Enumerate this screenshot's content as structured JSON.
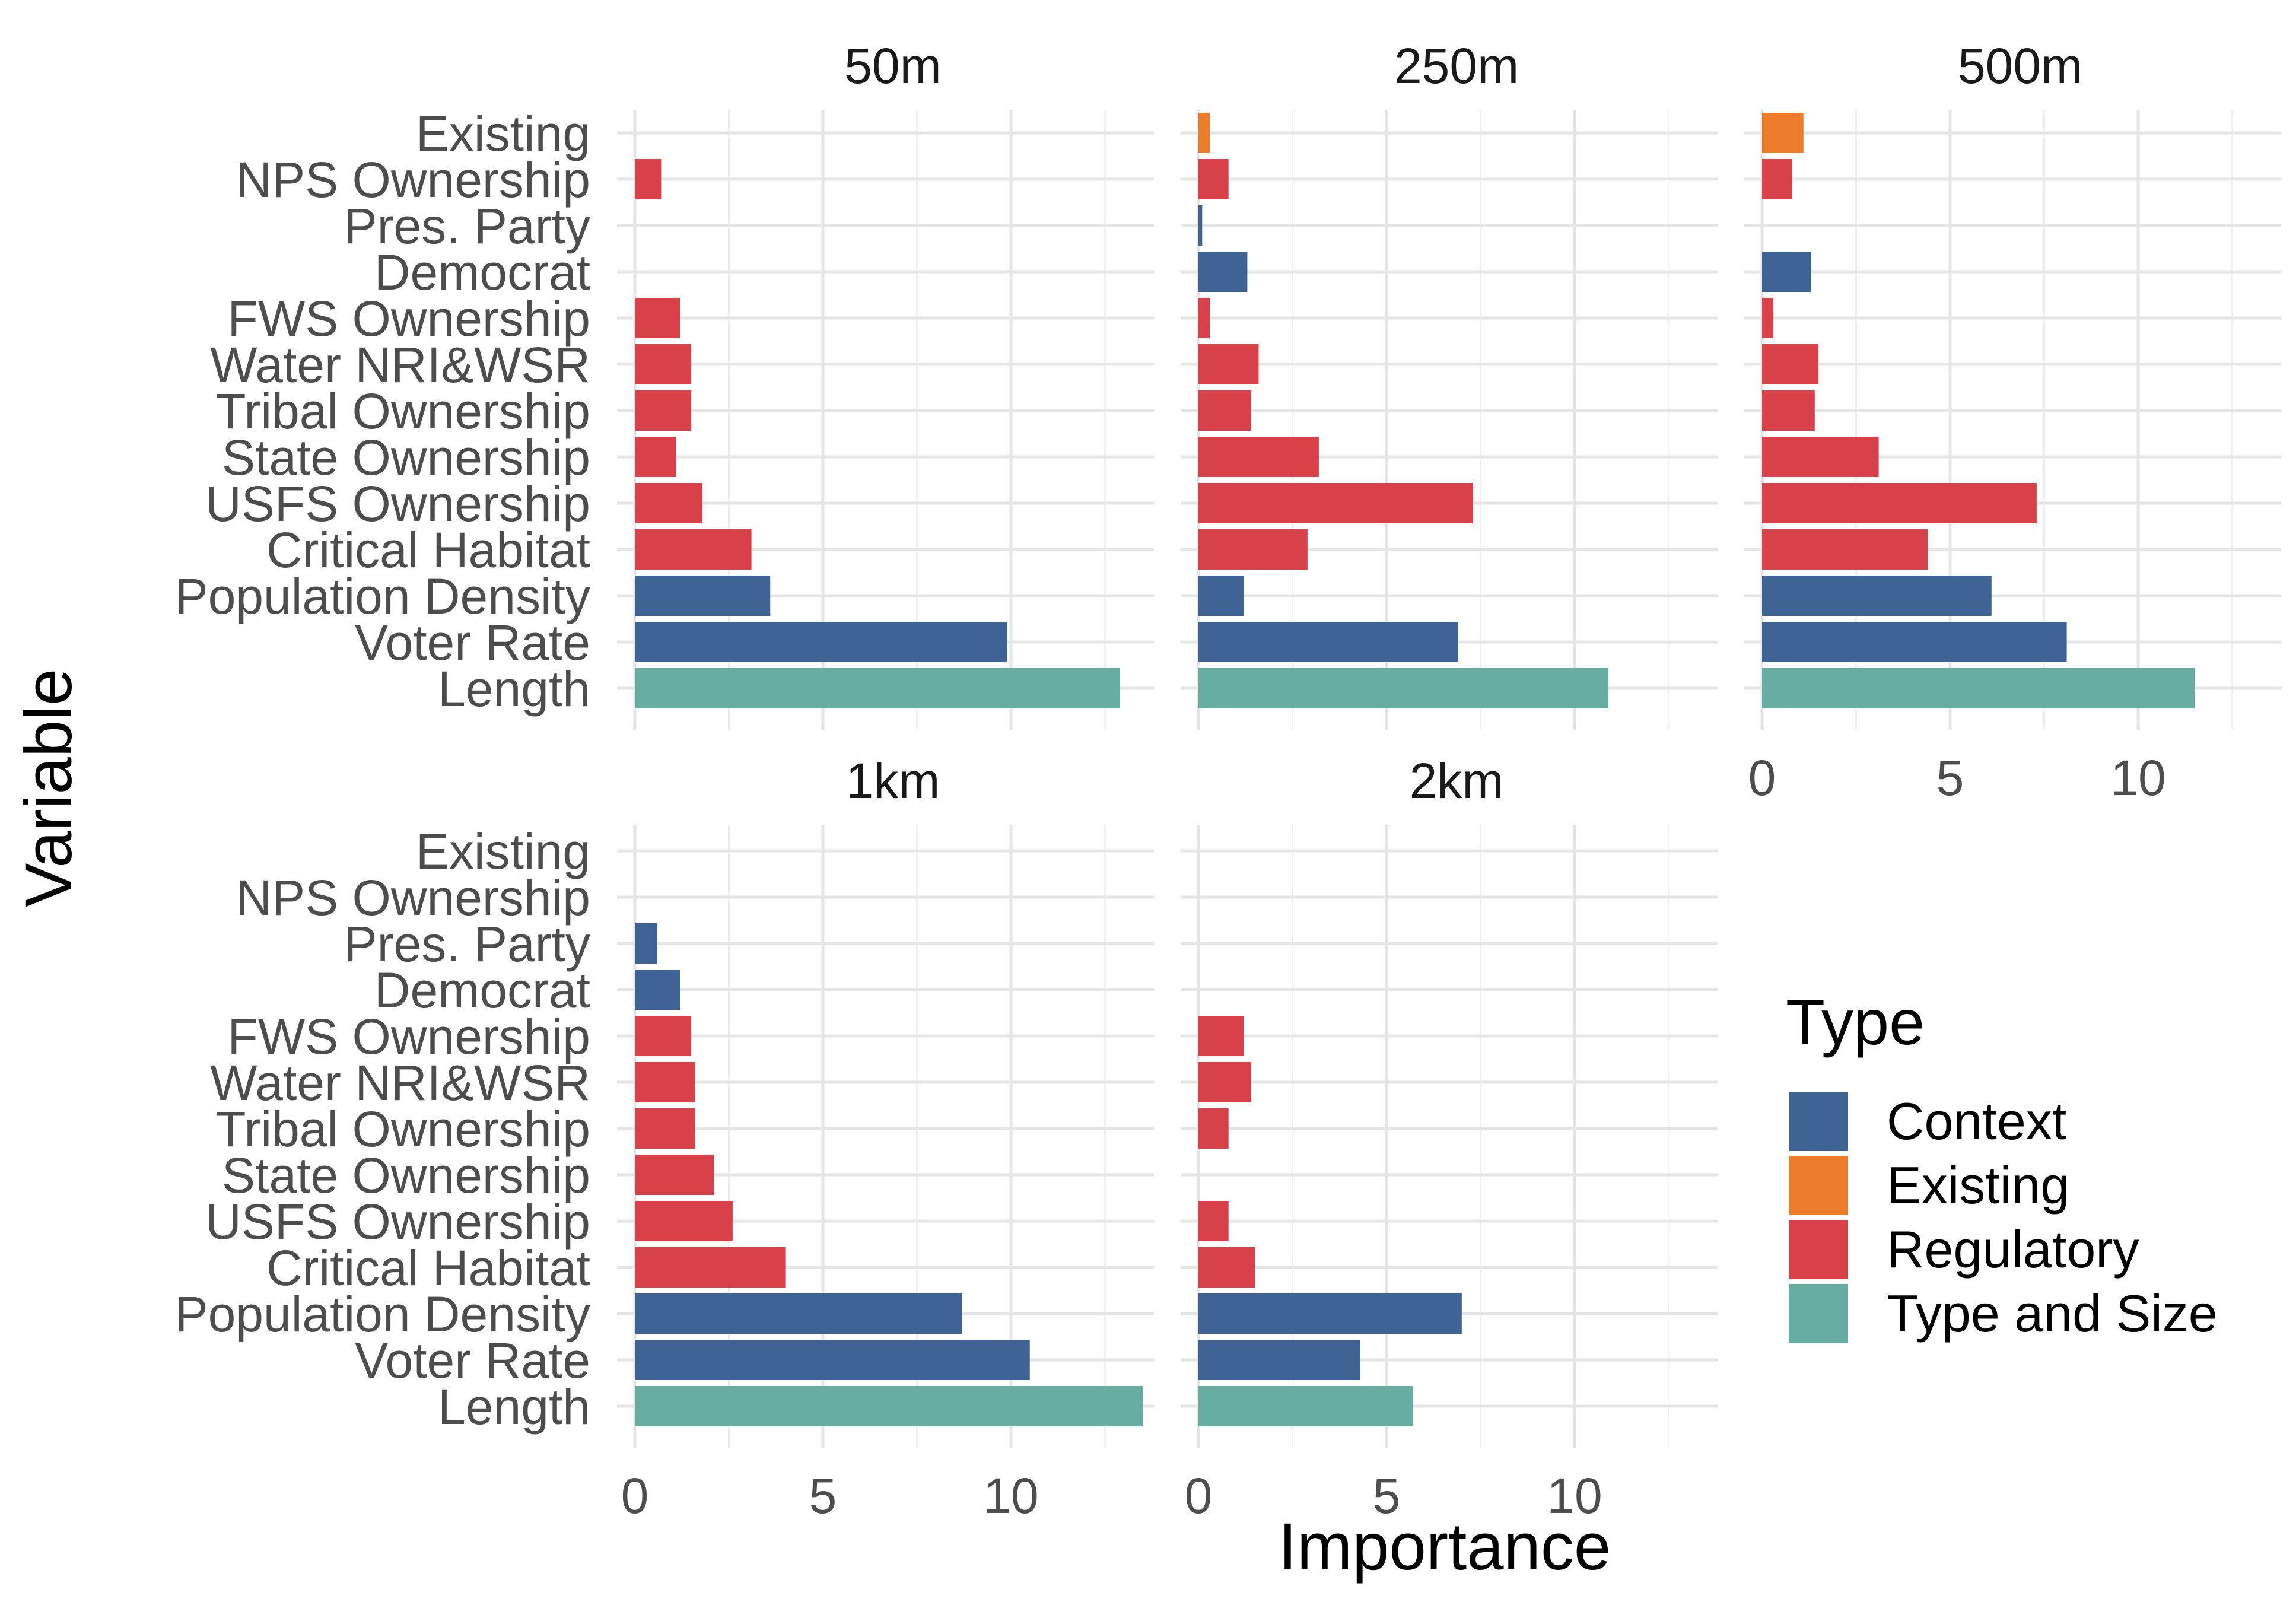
{
  "chart_data": {
    "type": "bar",
    "orientation": "horizontal",
    "xlabel": "Importance",
    "ylabel": "Variable",
    "xlim": [
      0,
      13.8
    ],
    "xticks": [
      "0",
      "5",
      "10"
    ],
    "grid": true,
    "categories": [
      "Existing",
      "NPS Ownership",
      "Pres. Party",
      "Democrat",
      "FWS Ownership",
      "Water NRI&WSR",
      "Tribal Ownership",
      "State Ownership",
      "USFS Ownership",
      "Critical Habitat",
      "Population Density",
      "Voter Rate",
      "Length"
    ],
    "category_types": [
      "Existing",
      "Regulatory",
      "Context",
      "Context",
      "Regulatory",
      "Regulatory",
      "Regulatory",
      "Regulatory",
      "Regulatory",
      "Regulatory",
      "Context",
      "Context",
      "Type and Size"
    ],
    "legend": {
      "title": "Type",
      "position": "right",
      "items": [
        {
          "name": "Context",
          "color": "#3f6394"
        },
        {
          "name": "Existing",
          "color": "#ec7d2c"
        },
        {
          "name": "Regulatory",
          "color": "#d9414a"
        },
        {
          "name": "Type and Size",
          "color": "#67ada2"
        }
      ]
    },
    "panels": [
      {
        "title": "50m",
        "values": [
          null,
          0.7,
          null,
          null,
          1.2,
          1.5,
          1.5,
          1.1,
          1.8,
          3.1,
          3.6,
          9.9,
          12.9
        ]
      },
      {
        "title": "250m",
        "values": [
          0.3,
          0.8,
          0.1,
          1.3,
          0.3,
          1.6,
          1.4,
          3.2,
          7.3,
          2.9,
          1.2,
          6.9,
          10.9
        ]
      },
      {
        "title": "500m",
        "values": [
          1.1,
          0.8,
          null,
          1.3,
          0.3,
          1.5,
          1.4,
          3.1,
          7.3,
          4.4,
          6.1,
          8.1,
          11.5
        ]
      },
      {
        "title": "1km",
        "values": [
          null,
          null,
          0.6,
          1.2,
          1.5,
          1.6,
          1.6,
          2.1,
          2.6,
          4.0,
          8.7,
          10.5,
          13.5
        ]
      },
      {
        "title": "2km",
        "values": [
          null,
          null,
          null,
          null,
          1.2,
          1.4,
          0.8,
          null,
          0.8,
          1.5,
          7.0,
          4.3,
          5.7
        ]
      }
    ]
  }
}
